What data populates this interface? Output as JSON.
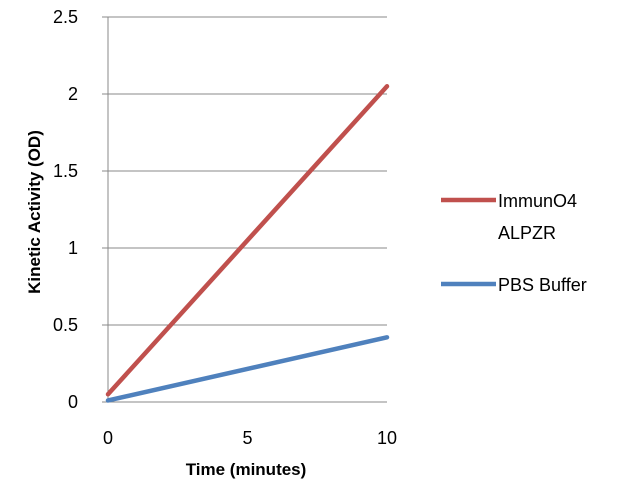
{
  "chart_data": {
    "type": "line",
    "title": "",
    "xlabel": "Time (minutes)",
    "ylabel": "Kinetic Activity (OD)",
    "xlim": [
      0,
      10
    ],
    "ylim": [
      0,
      2.5
    ],
    "xticks": [
      "0",
      "5",
      "10"
    ],
    "yticks": [
      "0",
      "0.5",
      "1",
      "1.5",
      "2",
      "2.5"
    ],
    "grid": "horizontal",
    "legend_position": "right",
    "series": [
      {
        "name": "ImmunO4 ALPZR",
        "name_lines": [
          "ImmunO4",
          "ALPZR"
        ],
        "color": "#C0504D",
        "x": [
          0,
          10
        ],
        "y": [
          0.05,
          2.05
        ]
      },
      {
        "name": "PBS Buffer",
        "name_lines": [
          "PBS Buffer"
        ],
        "color": "#4F81BD",
        "x": [
          0,
          10
        ],
        "y": [
          0.01,
          0.42
        ]
      }
    ]
  }
}
